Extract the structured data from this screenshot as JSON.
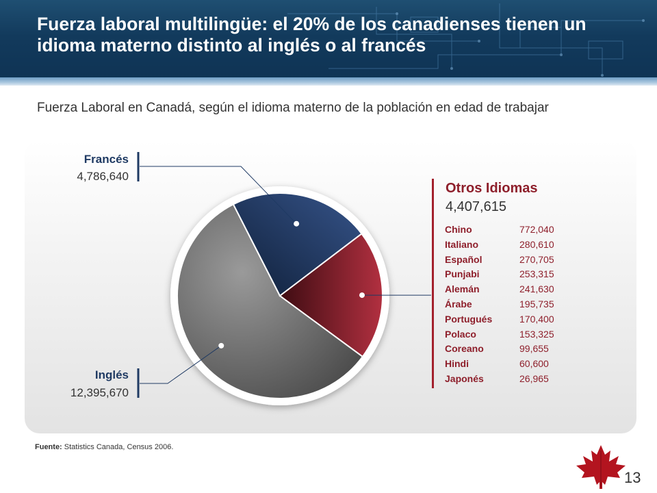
{
  "header": {
    "title": "Fuerza laboral multilingüe: el 20% de los canadienses tienen un idioma materno distinto al inglés o al francés"
  },
  "subtitle": "Fuerza Laboral en Canadá, según el idioma materno de la población en edad de trabajar",
  "chart_data": {
    "type": "pie",
    "title": "",
    "slices": [
      {
        "name": "Inglés",
        "value_label": "12,395,670",
        "value": 12395670,
        "color": "#6a6a6a"
      },
      {
        "name": "Francés",
        "value_label": "4,786,640",
        "value": 4786640,
        "color": "#243c62"
      },
      {
        "name": "Otros Idiomas",
        "value_label": "4,407,615",
        "value": 4407615,
        "color": "#8e1f2b"
      }
    ],
    "breakdown_title": "Otros Idiomas",
    "breakdown_total": "4,407,615",
    "breakdown": [
      {
        "name": "Chino",
        "value": "772,040"
      },
      {
        "name": "Italiano",
        "value": "280,610"
      },
      {
        "name": "Español",
        "value": "270,705"
      },
      {
        "name": "Punjabi",
        "value": "253,315"
      },
      {
        "name": "Alemán",
        "value": "241,630"
      },
      {
        "name": "Árabe",
        "value": "195,735"
      },
      {
        "name": "Portugués",
        "value": "170,400"
      },
      {
        "name": "Polaco",
        "value": "153,325"
      },
      {
        "name": "Coreano",
        "value": "99,655"
      },
      {
        "name": "Hindi",
        "value": "60,600"
      },
      {
        "name": "Japonés",
        "value": "26,965"
      }
    ]
  },
  "source": {
    "label": "Fuente:",
    "text": " Statistics Canada, Census 2006."
  },
  "page_number": "13",
  "colors": {
    "header_bg": "#123a5c",
    "accent_red": "#8e1f2b",
    "navy": "#1f3a63"
  }
}
